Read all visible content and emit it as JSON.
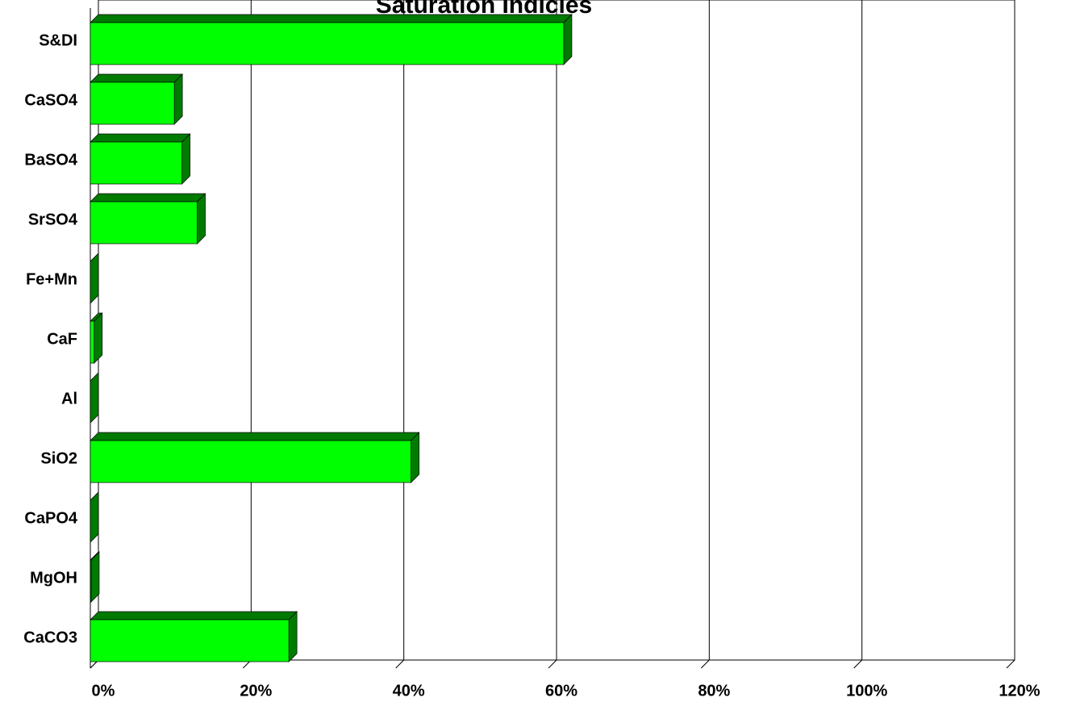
{
  "chart_data": {
    "type": "bar3d_horizontal",
    "title": "Saturation Indicies",
    "categories": [
      "S&DI",
      "CaSO4",
      "BaSO4",
      "SrSO4",
      "Fe+Mn",
      "CaF",
      "Al",
      "SiO2",
      "CaPO4",
      "MgOH",
      "CaCO3"
    ],
    "values": [
      62,
      11,
      12,
      14,
      0,
      0.5,
      0,
      42,
      0,
      0.1,
      26
    ],
    "color": "#00ff00",
    "side_color": "#007a00",
    "xlim": [
      0,
      120
    ],
    "xticks": [
      {
        "value": 0,
        "label": "0%"
      },
      {
        "value": 20,
        "label": "20%"
      },
      {
        "value": 40,
        "label": "40%"
      },
      {
        "value": 60,
        "label": "60%"
      },
      {
        "value": 80,
        "label": "80%"
      },
      {
        "value": 100,
        "label": "100%"
      },
      {
        "value": 120,
        "label": "120%"
      }
    ],
    "grid": true
  }
}
